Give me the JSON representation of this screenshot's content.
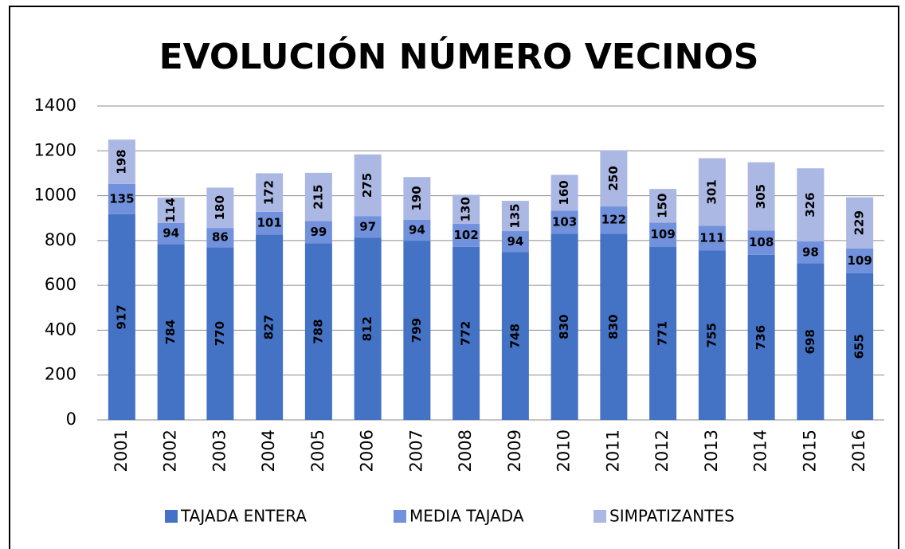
{
  "chart_data": {
    "type": "stacked_bar",
    "title": "EVOLUCIÓN NÚMERO VECINOS",
    "categories": [
      "2001",
      "2002",
      "2003",
      "2004",
      "2005",
      "2006",
      "2007",
      "2008",
      "2009",
      "2010",
      "2011",
      "2012",
      "2013",
      "2014",
      "2015",
      "2016"
    ],
    "series": [
      {
        "name": "TAJADA ENTERA",
        "color": "#4472c4",
        "values": [
          917,
          784,
          770,
          827,
          788,
          812,
          799,
          772,
          748,
          830,
          830,
          771,
          755,
          736,
          698,
          655
        ]
      },
      {
        "name": "MEDIA TAJADA",
        "color": "#7191dc",
        "values": [
          135,
          94,
          86,
          101,
          99,
          97,
          94,
          102,
          94,
          103,
          122,
          109,
          111,
          108,
          98,
          109
        ]
      },
      {
        "name": "SIMPATIZANTES",
        "color": "#abb8e3",
        "values": [
          198,
          114,
          180,
          172,
          215,
          275,
          190,
          130,
          135,
          160,
          250,
          150,
          301,
          305,
          326,
          229
        ]
      }
    ],
    "ylim": [
      0,
      1400
    ],
    "yticks": [
      0,
      200,
      400,
      600,
      800,
      1000,
      1200,
      1400
    ],
    "grid": true,
    "legend": "bottom"
  }
}
